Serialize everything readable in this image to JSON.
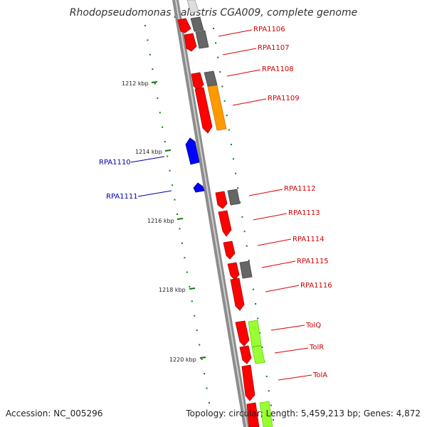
{
  "title": "Rhodopseudomonas palustris CGA009, complete genome",
  "footer": {
    "accession": "Accession: NC_005296",
    "stats": "Topology: circular; Length: 5,459,213 bp; Genes: 4,872"
  },
  "colors": {
    "forward_gene": "#ff0000",
    "reverse_gene": "#0000ff",
    "orange_feature": "#ff9900",
    "lime_feature": "#99ff33",
    "gray_feature": "#666666",
    "backbone": "#888888",
    "tick": "#117711",
    "forward_label": "#cc0000",
    "reverse_label": "#0000aa"
  },
  "kbp_ticks": [
    "1212 kbp",
    "1214 kbp",
    "1216 kbp",
    "1218 kbp",
    "1220 kbp"
  ],
  "forward_genes": [
    "RPA1106",
    "RPA1107",
    "RPA1108",
    "RPA1109",
    "RPA1112",
    "RPA1113",
    "RPA1114",
    "RPA1115",
    "RPA1116",
    "TolQ",
    "TolR",
    "TolA"
  ],
  "reverse_genes": [
    "RPA1110",
    "RPA1111"
  ]
}
